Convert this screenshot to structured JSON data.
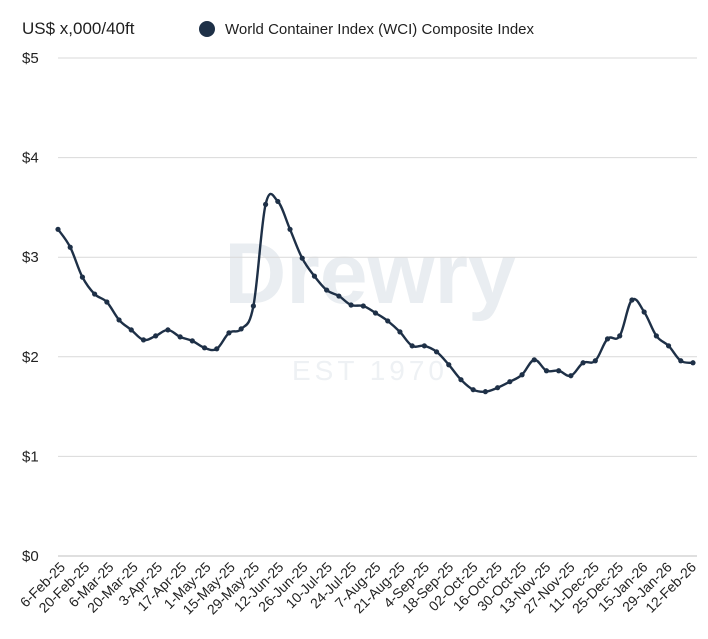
{
  "watermark": {
    "brand": "Drewry",
    "tagline": "EST 1970"
  },
  "chart_data": {
    "type": "line",
    "unit_label": "US$ x,000/40ft",
    "ylim": [
      0,
      5
    ],
    "y_ticks": [
      0,
      1,
      2,
      3,
      4,
      5
    ],
    "y_tick_labels": [
      "$0",
      "$1",
      "$2",
      "$3",
      "$4",
      "$5"
    ],
    "grid": "horizontal",
    "legend_position": "top",
    "colors": {
      "series": "#1e3047",
      "grid": "#d9d9d9",
      "axis": "#bfbfbf"
    },
    "x_tick_labels": [
      "6-Feb-25",
      "20-Feb-25",
      "6-Mar-25",
      "20-Mar-25",
      "3-Apr-25",
      "17-Apr-25",
      "1-May-25",
      "15-May-25",
      "29-May-25",
      "12-Jun-25",
      "26-Jun-25",
      "10-Jul-25",
      "24-Jul-25",
      "7-Aug-25",
      "21-Aug-25",
      "4-Sep-25",
      "18-Sep-25",
      "02-Oct-25",
      "16-Oct-25",
      "30-Oct-25",
      "13-Nov-25",
      "27-Nov-25",
      "11-Dec-25",
      "25-Dec-25",
      "15-Jan-26",
      "29-Jan-26",
      "12-Feb-26"
    ],
    "series": [
      {
        "name": "World Container Index (WCI) Composite Index",
        "values": [
          3.28,
          3.1,
          2.8,
          2.63,
          2.55,
          2.37,
          2.27,
          2.17,
          2.21,
          2.27,
          2.2,
          2.16,
          2.09,
          2.08,
          2.24,
          2.28,
          2.51,
          3.53,
          3.56,
          3.28,
          2.99,
          2.81,
          2.67,
          2.61,
          2.52,
          2.51,
          2.44,
          2.36,
          2.25,
          2.11,
          2.11,
          2.05,
          1.92,
          1.77,
          1.67,
          1.65,
          1.69,
          1.75,
          1.82,
          1.97,
          1.86,
          1.86,
          1.81,
          1.94,
          1.96,
          2.18,
          2.21,
          2.57,
          2.45,
          2.21,
          2.11,
          1.96,
          1.94
        ]
      }
    ]
  }
}
